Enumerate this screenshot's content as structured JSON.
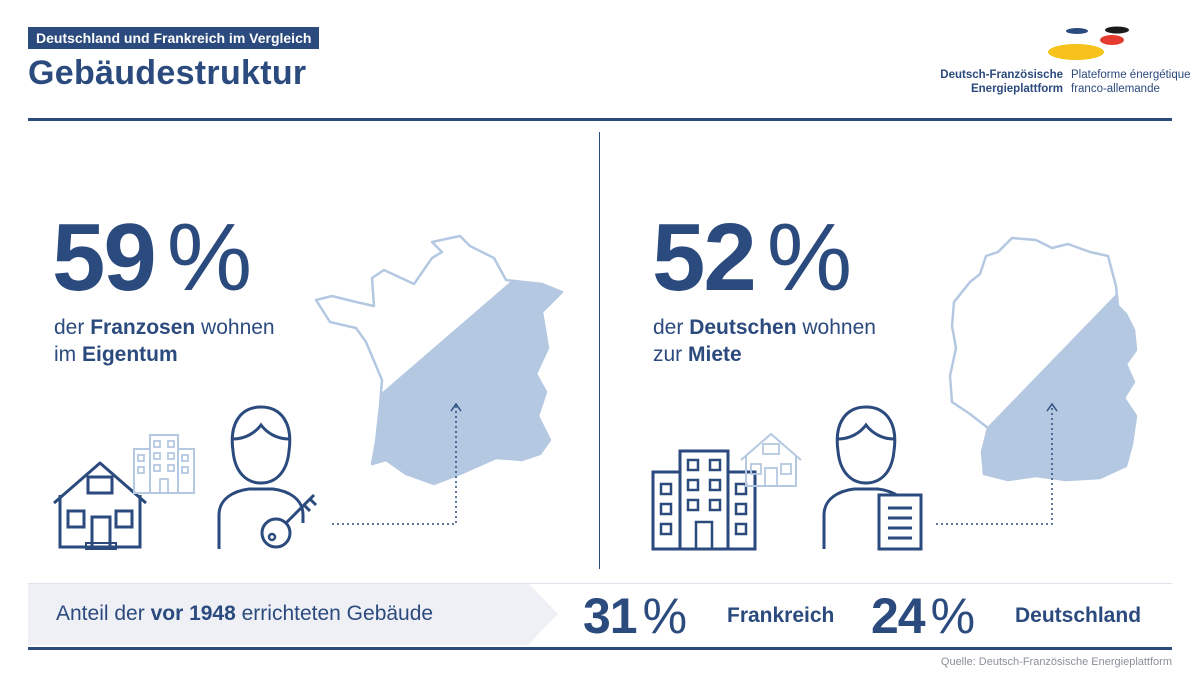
{
  "header": {
    "tag": "Deutschland und Frankreich im Vergleich",
    "title": "Gebäudestruktur"
  },
  "logo": {
    "de_line1": "Deutsch-Französische",
    "de_line2": "Energieplattform",
    "fr_line1": "Plateforme énergétique",
    "fr_line2": "franco-allemande",
    "colors": [
      "#2b4a7d",
      "#1a1a1a",
      "#e63a2e",
      "#f7c21b"
    ]
  },
  "france": {
    "value": "59",
    "unit": "%",
    "share": 59,
    "line1_pre": "der ",
    "line1_bold": "Franzosen",
    "line1_post": " wohnen",
    "line2_pre": "im ",
    "line2_bold": "Eigentum",
    "map_label": "france-map",
    "icons": [
      "house-icon",
      "apartment-building-icon",
      "person-icon",
      "key-icon"
    ]
  },
  "germany": {
    "value": "52",
    "unit": "%",
    "share": 52,
    "line1_pre": "der ",
    "line1_bold": "Deutschen",
    "line1_post": " wohnen",
    "line2_pre": "zur ",
    "line2_bold": "Miete",
    "map_label": "germany-map",
    "icons": [
      "apartment-building-icon",
      "house-icon",
      "person-icon",
      "document-icon"
    ]
  },
  "band": {
    "label_pre": "Anteil der ",
    "label_bold": "vor 1948",
    "label_post": " errichteten Gebäude",
    "fr_value": "31",
    "fr_unit": "%",
    "fr_country": "Frankreich",
    "de_value": "24",
    "de_unit": "%",
    "de_country": "Deutschland"
  },
  "source": "Quelle: Deutsch-Französische Energieplattform",
  "colors": {
    "primary": "#2b4a7d",
    "map_fill": "#b5c8e2",
    "band_fill": "#eef0f6"
  }
}
